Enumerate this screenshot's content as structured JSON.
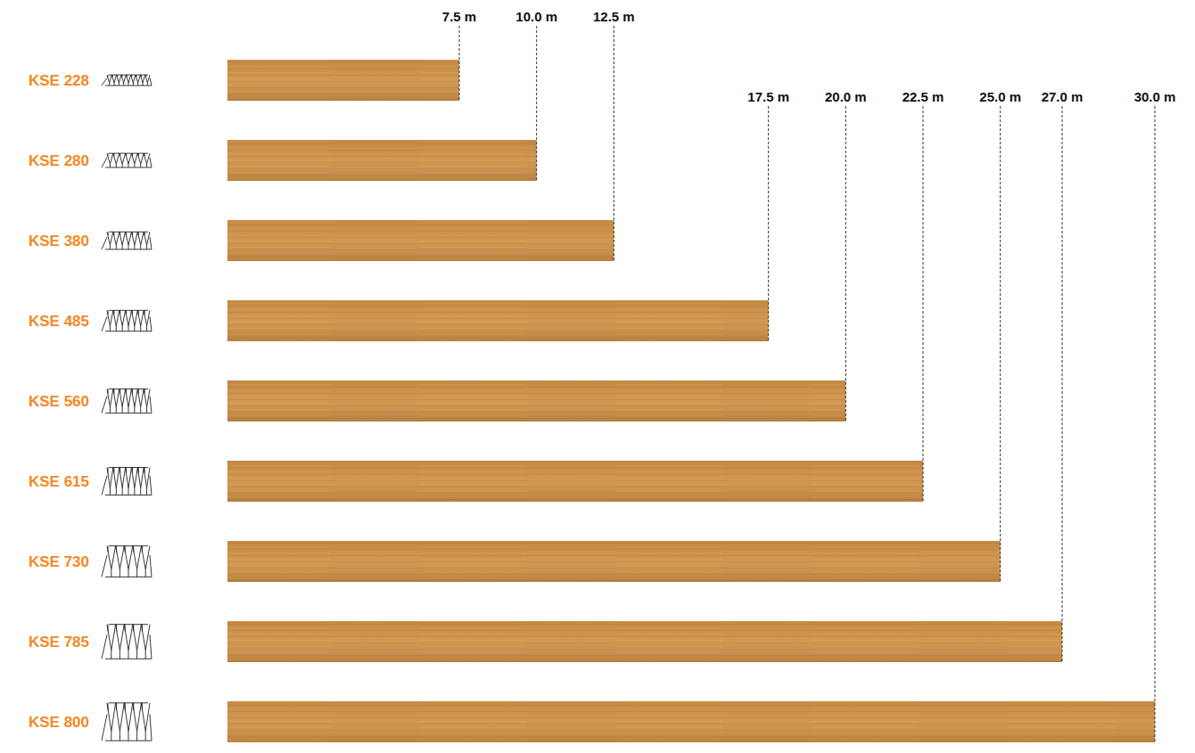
{
  "chart_data": {
    "type": "bar",
    "orientation": "horizontal",
    "categories": [
      "KSE 228",
      "KSE 280",
      "KSE 380",
      "KSE 485",
      "KSE 560",
      "KSE 615",
      "KSE 730",
      "KSE 785",
      "KSE 800"
    ],
    "values": [
      7.5,
      10.0,
      12.5,
      17.5,
      20.0,
      22.5,
      25.0,
      27.0,
      30.0
    ],
    "value_labels": [
      "7.5 m",
      "10.0 m",
      "12.5 m",
      "17.5 m",
      "20.0 m",
      "22.5 m",
      "25.0 m",
      "27.0 m",
      "30.0 m"
    ],
    "data_labels": true,
    "tick_labels": "y",
    "xlim": [
      0,
      30
    ],
    "color": "#d09248"
  }
}
